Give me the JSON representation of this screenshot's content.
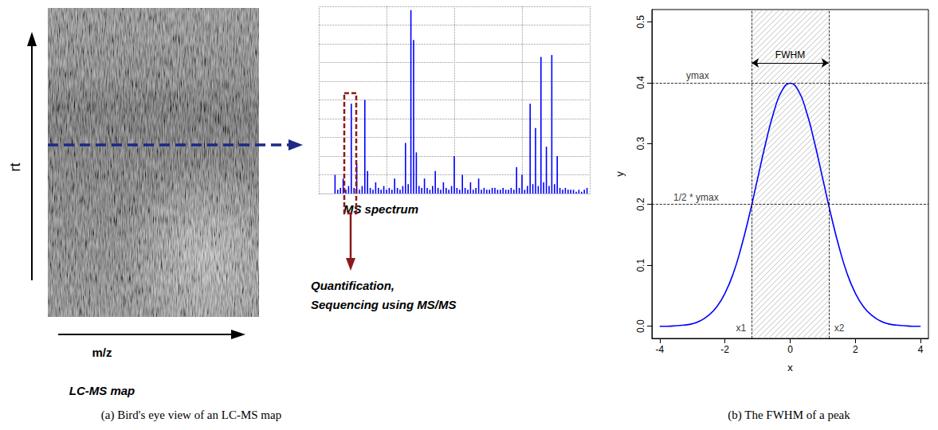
{
  "diagram": {
    "y_axis_label": "rt",
    "x_axis_label": "m/z",
    "map_label": "LC-MS map",
    "action_lines": [
      "Quantification,",
      "Sequencing using MS/MS"
    ],
    "caption": "(a) Bird's eye view of an LC-MS map"
  },
  "chart_data": [
    {
      "type": "bar",
      "title": "MS spectrum",
      "color": "#0000ff",
      "x": [
        6,
        7,
        8,
        9,
        10,
        11,
        12,
        13,
        14,
        15,
        16,
        17,
        18,
        19,
        20,
        21,
        22,
        23,
        24,
        25,
        26,
        27,
        28,
        29,
        30,
        31,
        32,
        33,
        34,
        35,
        36,
        37,
        38,
        39,
        40,
        41,
        42,
        43,
        44,
        45,
        46,
        47,
        48,
        49,
        50,
        51,
        52,
        53,
        54,
        55,
        56,
        57,
        58,
        59,
        60,
        61,
        62,
        63,
        64,
        65,
        66,
        67,
        68,
        69,
        70,
        71,
        72,
        73,
        74,
        75,
        76,
        77,
        78,
        79,
        80,
        81,
        82,
        83,
        84,
        85,
        86,
        87,
        88,
        89,
        90,
        91,
        92,
        93,
        94,
        95,
        96,
        97,
        98,
        99
      ],
      "values": [
        10,
        2,
        3,
        8,
        2,
        4,
        48,
        3,
        16,
        2,
        4,
        50,
        12,
        3,
        2,
        6,
        3,
        2,
        4,
        2,
        3,
        2,
        8,
        3,
        2,
        4,
        27,
        5,
        98,
        82,
        22,
        4,
        3,
        8,
        3,
        2,
        4,
        12,
        3,
        2,
        6,
        3,
        2,
        4,
        20,
        3,
        2,
        10,
        3,
        2,
        6,
        2,
        3,
        8,
        2,
        3,
        2,
        2,
        3,
        3,
        2,
        2,
        3,
        2,
        2,
        3,
        2,
        14,
        3,
        10,
        2,
        4,
        48,
        5,
        35,
        4,
        73,
        6,
        25,
        4,
        74,
        5,
        20,
        3,
        2,
        3,
        2,
        2,
        2,
        1,
        2,
        1,
        2,
        3
      ],
      "xlim": [
        0,
        100
      ],
      "ylim": [
        0,
        100
      ],
      "xticks": [
        0,
        25,
        50,
        75,
        100
      ],
      "yticks": [
        0,
        10,
        20,
        30,
        40,
        50,
        60,
        70,
        80,
        90,
        100
      ],
      "grid": true,
      "tick_labels": false
    },
    {
      "type": "line",
      "title": "(b) The FWHM of a peak",
      "color": "#0000ff",
      "x_label": "x",
      "y_label": "y",
      "x": [
        -4,
        -3.75,
        -3.5,
        -3.25,
        -3,
        -2.75,
        -2.5,
        -2.25,
        -2,
        -1.75,
        -1.5,
        -1.25,
        -1,
        -0.75,
        -0.5,
        -0.25,
        0,
        0.25,
        0.5,
        0.75,
        1,
        1.25,
        1.5,
        1.75,
        2,
        2.25,
        2.5,
        2.75,
        3,
        3.25,
        3.5,
        3.75,
        4
      ],
      "values": [
        0.0,
        0.0,
        0.001,
        0.002,
        0.004,
        0.009,
        0.018,
        0.032,
        0.054,
        0.086,
        0.13,
        0.183,
        0.242,
        0.301,
        0.352,
        0.387,
        0.399,
        0.387,
        0.352,
        0.301,
        0.242,
        0.183,
        0.13,
        0.086,
        0.054,
        0.032,
        0.018,
        0.009,
        0.004,
        0.002,
        0.001,
        0.0,
        0.0
      ],
      "xlim": [
        -4.24,
        4.24
      ],
      "ylim": [
        -0.02,
        0.52
      ],
      "xticks": [
        -4,
        -2,
        0,
        2,
        4
      ],
      "yticks": [
        {
          "value": 0,
          "label": "0.0"
        },
        {
          "value": 0.1,
          "label": "0.1"
        },
        {
          "value": 0.2,
          "label": "0.2"
        },
        {
          "value": 0.3,
          "label": "0.3"
        },
        {
          "value": 0.4,
          "label": "0.4"
        },
        {
          "value": 0.5,
          "label": "0.5"
        }
      ],
      "grid": false,
      "annotations": {
        "ymax": {
          "value": 0.4,
          "label": "ymax"
        },
        "half_max": {
          "value": 0.2,
          "label": "1/2 * ymax"
        },
        "x1": {
          "value": -1.18,
          "label": "x1"
        },
        "x2": {
          "value": 1.18,
          "label": "x2"
        },
        "span_label": "FWHM"
      }
    }
  ]
}
